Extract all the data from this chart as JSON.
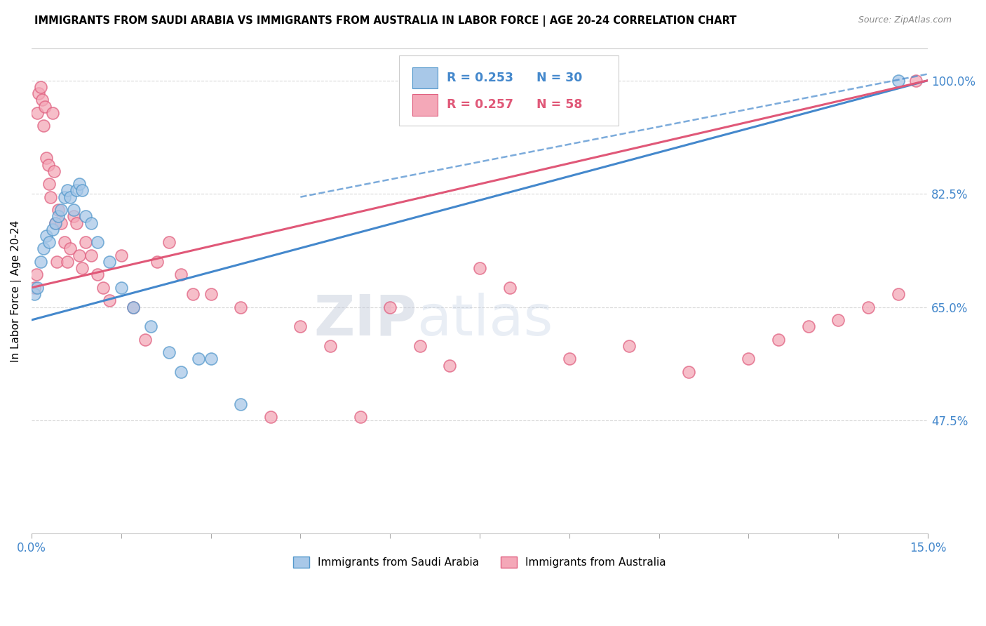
{
  "title": "IMMIGRANTS FROM SAUDI ARABIA VS IMMIGRANTS FROM AUSTRALIA IN LABOR FORCE | AGE 20-24 CORRELATION CHART",
  "source": "Source: ZipAtlas.com",
  "ylabel": "In Labor Force | Age 20-24",
  "right_yticks": [
    47.5,
    65.0,
    82.5,
    100.0
  ],
  "xmin": 0.0,
  "xmax": 15.0,
  "ymin": 30.0,
  "ymax": 105.0,
  "legend_blue_r": "R = 0.253",
  "legend_blue_n": "N = 30",
  "legend_pink_r": "R = 0.257",
  "legend_pink_n": "N = 58",
  "legend_label_blue": "Immigrants from Saudi Arabia",
  "legend_label_pink": "Immigrants from Australia",
  "blue_color": "#a8c8e8",
  "pink_color": "#f4a8b8",
  "blue_edge_color": "#5599cc",
  "pink_edge_color": "#e06080",
  "blue_line_color": "#4488cc",
  "pink_line_color": "#e05878",
  "saudi_x": [
    0.05,
    0.1,
    0.15,
    0.2,
    0.25,
    0.3,
    0.35,
    0.4,
    0.45,
    0.5,
    0.55,
    0.6,
    0.65,
    0.7,
    0.75,
    0.8,
    0.85,
    0.9,
    1.0,
    1.1,
    1.3,
    1.5,
    1.7,
    2.0,
    2.3,
    2.5,
    2.8,
    3.0,
    3.5,
    14.5
  ],
  "saudi_y": [
    67,
    68,
    72,
    74,
    76,
    75,
    77,
    78,
    79,
    80,
    82,
    83,
    82,
    80,
    83,
    84,
    83,
    79,
    78,
    75,
    72,
    68,
    65,
    62,
    58,
    55,
    57,
    57,
    50,
    100
  ],
  "aus_x": [
    0.05,
    0.08,
    0.1,
    0.12,
    0.15,
    0.18,
    0.2,
    0.22,
    0.25,
    0.28,
    0.3,
    0.32,
    0.35,
    0.38,
    0.4,
    0.42,
    0.45,
    0.5,
    0.55,
    0.6,
    0.65,
    0.7,
    0.75,
    0.8,
    0.85,
    0.9,
    1.0,
    1.1,
    1.2,
    1.3,
    1.5,
    1.7,
    1.9,
    2.1,
    2.5,
    2.7,
    3.0,
    3.5,
    4.0,
    4.5,
    5.0,
    5.5,
    6.0,
    6.5,
    7.0,
    7.5,
    8.0,
    9.0,
    10.0,
    11.0,
    12.0,
    12.5,
    13.0,
    13.5,
    14.0,
    14.5,
    14.8,
    2.3
  ],
  "aus_y": [
    68,
    70,
    95,
    98,
    99,
    97,
    93,
    96,
    88,
    87,
    84,
    82,
    95,
    86,
    78,
    72,
    80,
    78,
    75,
    72,
    74,
    79,
    78,
    73,
    71,
    75,
    73,
    70,
    68,
    66,
    73,
    65,
    60,
    72,
    70,
    67,
    67,
    65,
    48,
    62,
    59,
    48,
    65,
    59,
    56,
    71,
    68,
    57,
    59,
    55,
    57,
    60,
    62,
    63,
    65,
    67,
    100,
    75
  ],
  "watermark_zip": "ZIP",
  "watermark_atlas": "atlas",
  "background_color": "#ffffff",
  "grid_color": "#d8d8d8"
}
